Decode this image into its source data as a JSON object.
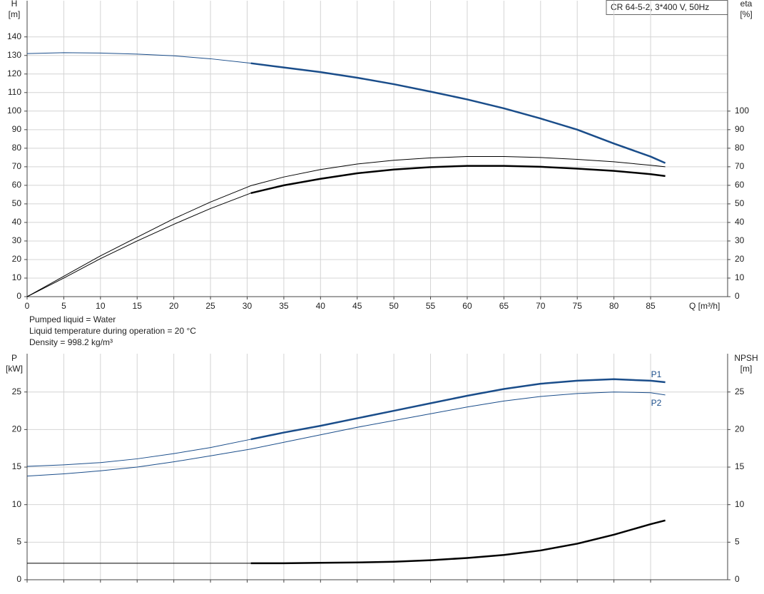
{
  "chart_data": [
    {
      "type": "line",
      "title": "CR 64-5-2, 3*400 V, 50Hz",
      "ylabel": "H",
      "yunit": "[m]",
      "y2label": "eta",
      "y2unit": "[%]",
      "xlabel": "Q [m³/h]",
      "notes": [
        "Pumped liquid = Water",
        "Liquid temperature during operation = 20 °C",
        "Density = 998.2 kg/m³"
      ],
      "x": [
        0,
        5,
        10,
        15,
        20,
        25,
        30.5,
        35,
        40,
        45,
        50,
        55,
        60,
        65,
        70,
        75,
        80,
        85,
        87
      ],
      "xlim": [
        0,
        95.5
      ],
      "xticks": [
        0,
        5,
        10,
        15,
        20,
        25,
        30,
        35,
        40,
        45,
        50,
        55,
        60,
        65,
        70,
        75,
        80,
        85
      ],
      "ylim": [
        0,
        159.5
      ],
      "yticks": [
        0,
        10,
        20,
        30,
        40,
        50,
        60,
        70,
        80,
        90,
        100,
        110,
        120,
        130,
        140
      ],
      "y2lim": [
        0,
        159.5
      ],
      "y2ticks": [
        0,
        10,
        20,
        30,
        40,
        50,
        60,
        70,
        80,
        90,
        100
      ],
      "grid": true,
      "xtick_labels": true,
      "series": [
        {
          "color": "#1a4d8a",
          "line_width": 1,
          "values": [
            131,
            131.5,
            131.3,
            130.7,
            129.8,
            128.2,
            125.8,
            null,
            null,
            null,
            null,
            null,
            null,
            null,
            null,
            null,
            null,
            null,
            null
          ]
        },
        {
          "color": "#1a4d8a",
          "line_width": 2.5,
          "values": [
            null,
            null,
            null,
            null,
            null,
            null,
            125.8,
            123.5,
            121,
            118,
            114.5,
            110.5,
            106.3,
            101.5,
            96,
            90,
            82.5,
            75.5,
            72
          ]
        },
        {
          "color": "#000000",
          "line_width": 1,
          "axis": "y2",
          "values": [
            0,
            11,
            22,
            32,
            42,
            51,
            59.8,
            64.5,
            68.5,
            71.5,
            73.5,
            74.8,
            75.5,
            75.5,
            75,
            74,
            72.7,
            70.8,
            70
          ]
        },
        {
          "color": "#000000",
          "line_width": 1,
          "axis": "y2",
          "values": [
            0,
            10,
            20.5,
            30,
            39,
            47.5,
            55.8,
            null,
            null,
            null,
            null,
            null,
            null,
            null,
            null,
            null,
            null,
            null,
            null
          ]
        },
        {
          "color": "#000000",
          "line_width": 2.5,
          "axis": "y2",
          "values": [
            null,
            null,
            null,
            null,
            null,
            null,
            55.8,
            60,
            63.5,
            66.5,
            68.5,
            69.8,
            70.5,
            70.5,
            70,
            69,
            67.8,
            66,
            65
          ]
        }
      ]
    },
    {
      "type": "line",
      "ylabel": "P",
      "yunit": "[kW]",
      "y2label": "NPSH",
      "y2unit": "[m]",
      "x": [
        0,
        5,
        10,
        15,
        20,
        25,
        30.5,
        35,
        40,
        45,
        50,
        55,
        60,
        65,
        70,
        75,
        80,
        85,
        87
      ],
      "xlim": [
        0,
        95.5
      ],
      "xticks": [
        0,
        5,
        10,
        15,
        20,
        25,
        30,
        35,
        40,
        45,
        50,
        55,
        60,
        65,
        70,
        75,
        80,
        85
      ],
      "ylim": [
        0,
        30.1
      ],
      "yticks": [
        0,
        5,
        10,
        15,
        20,
        25
      ],
      "y2lim": [
        0,
        30.1
      ],
      "y2ticks": [
        0,
        5,
        10,
        15,
        20,
        25
      ],
      "grid": true,
      "xtick_labels": false,
      "series": [
        {
          "color": "#1a4d8a",
          "line_width": 1,
          "values": [
            15.1,
            15.3,
            15.6,
            16.1,
            16.8,
            17.6,
            18.7,
            null,
            null,
            null,
            null,
            null,
            null,
            null,
            null,
            null,
            null,
            null,
            null
          ]
        },
        {
          "name": "P1",
          "color": "#1a4d8a",
          "line_width": 2.5,
          "values": [
            null,
            null,
            null,
            null,
            null,
            null,
            18.7,
            19.6,
            20.5,
            21.5,
            22.5,
            23.5,
            24.5,
            25.4,
            26.1,
            26.5,
            26.7,
            26.5,
            26.3
          ]
        },
        {
          "name": "P2",
          "color": "#1a4d8a",
          "line_width": 1,
          "values": [
            13.8,
            14.1,
            14.5,
            15,
            15.7,
            16.5,
            17.4,
            18.3,
            19.3,
            20.3,
            21.2,
            22.1,
            23,
            23.8,
            24.4,
            24.8,
            25,
            24.9,
            24.6
          ]
        },
        {
          "color": "#000000",
          "line_width": 1,
          "axis": "y2",
          "values": [
            2.2,
            2.2,
            2.2,
            2.2,
            2.2,
            2.2,
            2.2,
            null,
            null,
            null,
            null,
            null,
            null,
            null,
            null,
            null,
            null,
            null,
            null
          ]
        },
        {
          "color": "#000000",
          "line_width": 2.5,
          "axis": "y2",
          "values": [
            null,
            null,
            null,
            null,
            null,
            null,
            2.2,
            2.2,
            2.25,
            2.3,
            2.4,
            2.6,
            2.9,
            3.3,
            3.9,
            4.8,
            6,
            7.4,
            7.9
          ]
        }
      ]
    }
  ]
}
